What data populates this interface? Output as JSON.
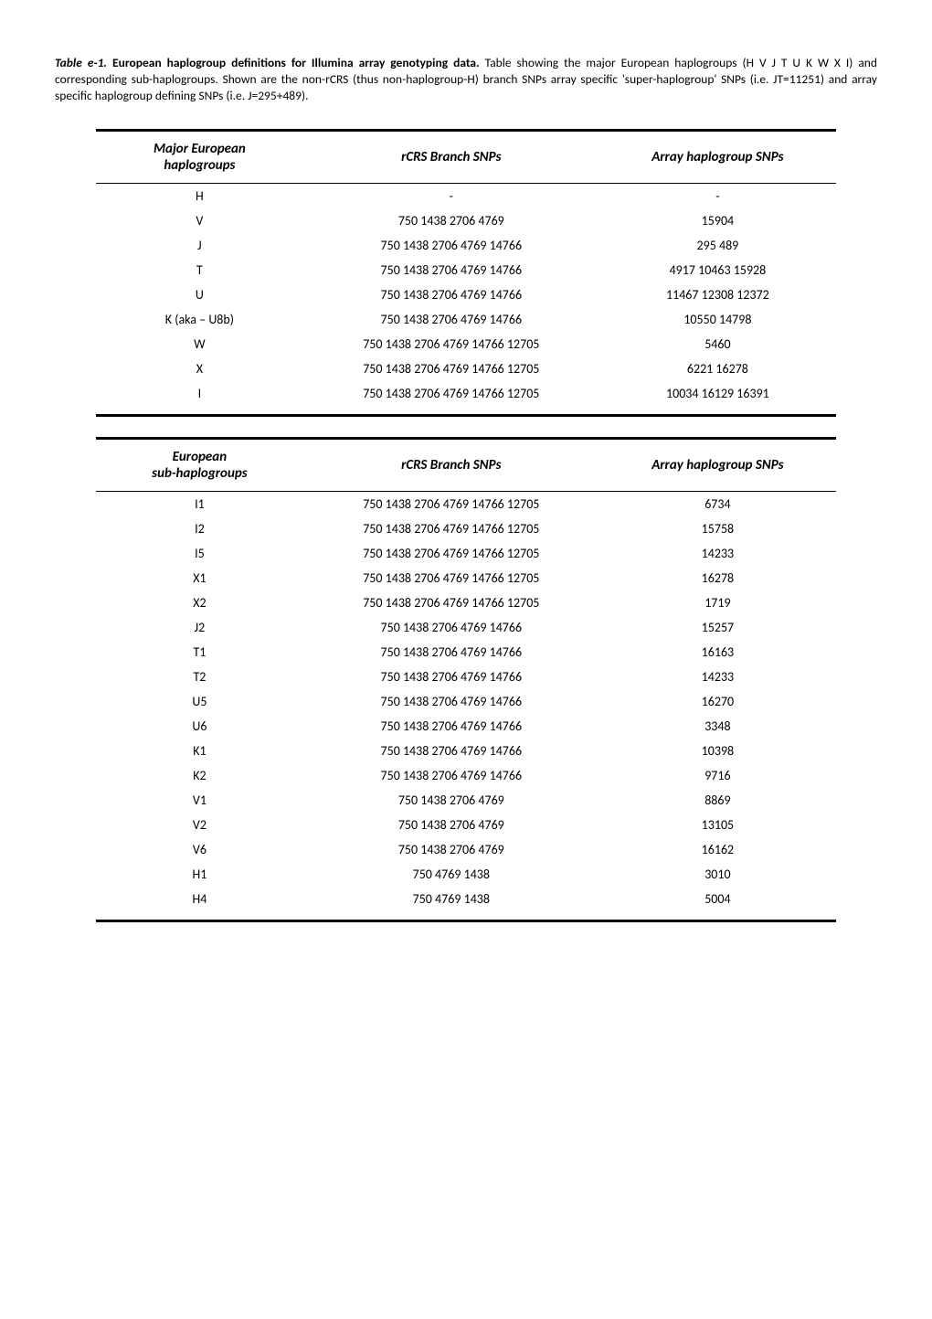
{
  "caption": {
    "label": "Table e-1.",
    "title": "European haplogroup definitions for Illumina array genotyping data.",
    "text": "Table showing the major European haplogroups (H V J T U K W X I) and corresponding sub-haplogroups. Shown are the non-rCRS (thus non-haplogroup-H) branch SNPs array specific 'super-haplogroup' SNPs (i.e. JT=11251) and array specific haplogroup defining SNPs (i.e. J=295+489)."
  },
  "table1": {
    "headers": [
      "Major European haplogroups",
      "rCRS Branch SNPs",
      "Array haplogroup SNPs"
    ],
    "rows": [
      [
        "H",
        "-",
        "-"
      ],
      [
        "V",
        "750 1438 2706 4769",
        "15904"
      ],
      [
        "J",
        "750 1438 2706 4769 14766",
        "295 489"
      ],
      [
        "T",
        "750 1438 2706 4769 14766",
        "4917 10463 15928"
      ],
      [
        "U",
        "750 1438 2706 4769 14766",
        "11467 12308 12372"
      ],
      [
        "K (aka – U8b)",
        "750 1438 2706 4769 14766",
        "10550 14798"
      ],
      [
        "W",
        "750 1438 2706 4769 14766 12705",
        "5460"
      ],
      [
        "X",
        "750 1438 2706 4769 14766 12705",
        "6221 16278"
      ],
      [
        "I",
        "750 1438 2706 4769 14766 12705",
        "10034 16129 16391"
      ]
    ]
  },
  "table2": {
    "headers": [
      "European sub-haplogroups",
      "rCRS Branch SNPs",
      "Array haplogroup SNPs"
    ],
    "rows": [
      [
        "I1",
        "750 1438 2706 4769 14766 12705",
        "6734"
      ],
      [
        "I2",
        "750 1438 2706 4769 14766 12705",
        "15758"
      ],
      [
        "I5",
        "750 1438 2706 4769 14766 12705",
        "14233"
      ],
      [
        "X1",
        "750 1438 2706 4769 14766 12705",
        "16278"
      ],
      [
        "X2",
        "750 1438 2706 4769 14766 12705",
        "1719"
      ],
      [
        "J2",
        "750 1438 2706 4769 14766",
        "15257"
      ],
      [
        "T1",
        "750 1438 2706 4769 14766",
        "16163"
      ],
      [
        "T2",
        "750 1438 2706 4769 14766",
        "14233"
      ],
      [
        "U5",
        "750 1438 2706 4769 14766",
        "16270"
      ],
      [
        "U6",
        "750 1438 2706 4769 14766",
        "3348"
      ],
      [
        "K1",
        "750 1438 2706 4769 14766",
        "10398"
      ],
      [
        "K2",
        "750 1438 2706 4769 14766",
        "9716"
      ],
      [
        "V1",
        "750 1438 2706 4769",
        "8869"
      ],
      [
        "V2",
        "750 1438 2706 4769",
        "13105"
      ],
      [
        "V6",
        "750 1438 2706 4769",
        "16162"
      ],
      [
        "H1",
        "750 4769 1438",
        "3010"
      ],
      [
        "H4",
        "750 4769 1438",
        "5004"
      ]
    ]
  },
  "col_widths": [
    "28%",
    "40%",
    "32%"
  ]
}
